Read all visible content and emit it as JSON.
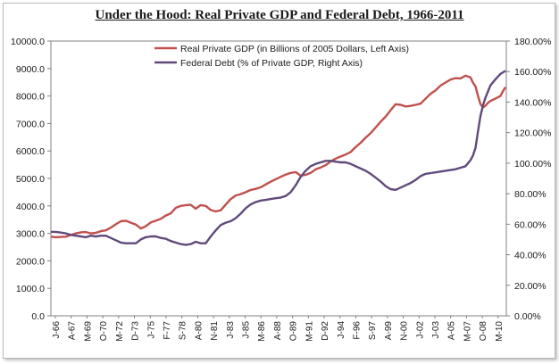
{
  "chart_data": {
    "type": "line",
    "title": "Under the Hood: Real Private GDP and Federal Debt, 1966-2011",
    "x_tick_labels": [
      "J-66",
      "A-67",
      "M-69",
      "O-70",
      "M-72",
      "D-73",
      "J-75",
      "F-77",
      "S-78",
      "A-80",
      "N-81",
      "J-83",
      "J-85",
      "M-86",
      "A-88",
      "O-89",
      "M-91",
      "D-92",
      "J-94",
      "F-96",
      "S-97",
      "A-99",
      "N-00",
      "J-02",
      "J-03",
      "A-05",
      "M-07",
      "O-08",
      "M-10"
    ],
    "y_left": {
      "ylim": [
        0,
        10000
      ],
      "ticks": [
        "0.0",
        "1000.0",
        "2000.0",
        "3000.0",
        "4000.0",
        "5000.0",
        "6000.0",
        "7000.0",
        "8000.0",
        "9000.0",
        "10000.0"
      ]
    },
    "y_right": {
      "ylim": [
        0,
        180
      ],
      "ticks": [
        "0.00%",
        "20.00%",
        "40.00%",
        "60.00%",
        "80.00%",
        "100.00%",
        "120.00%",
        "140.00%",
        "160.00%",
        "180.00%"
      ]
    },
    "legend_position": "top-center",
    "grid": false,
    "series": [
      {
        "name": "Real Private GDP (in Billions of 2005 Dollars, Left Axis)",
        "axis": "left",
        "color": "#c0504d",
        "points": [
          [
            "1966-01-01",
            2880
          ],
          [
            "1966-07-01",
            2860
          ],
          [
            "1967-01-01",
            2870
          ],
          [
            "1967-07-01",
            2880
          ],
          [
            "1968-01-01",
            2940
          ],
          [
            "1968-07-01",
            3000
          ],
          [
            "1969-01-01",
            3040
          ],
          [
            "1969-07-01",
            3050
          ],
          [
            "1970-01-01",
            3000
          ],
          [
            "1970-07-01",
            3020
          ],
          [
            "1971-01-01",
            3080
          ],
          [
            "1971-07-01",
            3110
          ],
          [
            "1972-01-01",
            3210
          ],
          [
            "1972-07-01",
            3330
          ],
          [
            "1973-01-01",
            3440
          ],
          [
            "1973-07-01",
            3460
          ],
          [
            "1974-01-01",
            3390
          ],
          [
            "1974-07-01",
            3320
          ],
          [
            "1975-01-01",
            3180
          ],
          [
            "1975-07-01",
            3260
          ],
          [
            "1976-01-01",
            3400
          ],
          [
            "1976-07-01",
            3460
          ],
          [
            "1977-01-01",
            3530
          ],
          [
            "1977-07-01",
            3650
          ],
          [
            "1978-01-01",
            3730
          ],
          [
            "1978-07-01",
            3930
          ],
          [
            "1979-01-01",
            4000
          ],
          [
            "1979-07-01",
            4030
          ],
          [
            "1980-01-01",
            4040
          ],
          [
            "1980-07-01",
            3900
          ],
          [
            "1981-01-01",
            4030
          ],
          [
            "1981-07-01",
            4000
          ],
          [
            "1982-01-01",
            3850
          ],
          [
            "1982-07-01",
            3800
          ],
          [
            "1983-01-01",
            3840
          ],
          [
            "1983-07-01",
            4050
          ],
          [
            "1984-01-01",
            4250
          ],
          [
            "1984-07-01",
            4380
          ],
          [
            "1985-01-01",
            4430
          ],
          [
            "1985-07-01",
            4500
          ],
          [
            "1986-01-01",
            4580
          ],
          [
            "1986-07-01",
            4620
          ],
          [
            "1987-01-01",
            4680
          ],
          [
            "1987-07-01",
            4780
          ],
          [
            "1988-01-01",
            4880
          ],
          [
            "1988-07-01",
            4970
          ],
          [
            "1989-01-01",
            5060
          ],
          [
            "1989-07-01",
            5140
          ],
          [
            "1990-01-01",
            5200
          ],
          [
            "1990-07-01",
            5230
          ],
          [
            "1991-01-01",
            5100
          ],
          [
            "1991-07-01",
            5130
          ],
          [
            "1992-01-01",
            5200
          ],
          [
            "1992-07-01",
            5330
          ],
          [
            "1993-01-01",
            5400
          ],
          [
            "1993-07-01",
            5480
          ],
          [
            "1994-01-01",
            5620
          ],
          [
            "1994-07-01",
            5720
          ],
          [
            "1995-01-01",
            5800
          ],
          [
            "1995-07-01",
            5870
          ],
          [
            "1996-01-01",
            5960
          ],
          [
            "1996-07-01",
            6140
          ],
          [
            "1997-01-01",
            6300
          ],
          [
            "1997-07-01",
            6480
          ],
          [
            "1998-01-01",
            6650
          ],
          [
            "1998-07-01",
            6850
          ],
          [
            "1999-01-01",
            7060
          ],
          [
            "1999-07-01",
            7250
          ],
          [
            "2000-01-01",
            7480
          ],
          [
            "2000-07-01",
            7700
          ],
          [
            "2001-01-01",
            7680
          ],
          [
            "2001-07-01",
            7620
          ],
          [
            "2002-01-01",
            7640
          ],
          [
            "2002-07-01",
            7680
          ],
          [
            "2003-01-01",
            7720
          ],
          [
            "2003-07-01",
            7900
          ],
          [
            "2004-01-01",
            8080
          ],
          [
            "2004-07-01",
            8200
          ],
          [
            "2005-01-01",
            8380
          ],
          [
            "2005-07-01",
            8490
          ],
          [
            "2006-01-01",
            8600
          ],
          [
            "2006-07-01",
            8650
          ],
          [
            "2007-01-01",
            8640
          ],
          [
            "2007-07-01",
            8740
          ],
          [
            "2008-01-01",
            8680
          ],
          [
            "2008-04-01",
            8480
          ],
          [
            "2008-07-01",
            8350
          ],
          [
            "2008-10-01",
            8000
          ],
          [
            "2009-01-01",
            7700
          ],
          [
            "2009-04-01",
            7580
          ],
          [
            "2009-07-01",
            7650
          ],
          [
            "2009-10-01",
            7750
          ],
          [
            "2010-01-01",
            7820
          ],
          [
            "2010-07-01",
            7910
          ],
          [
            "2011-01-01",
            8000
          ],
          [
            "2011-04-01",
            8180
          ],
          [
            "2011-07-01",
            8320
          ]
        ]
      },
      {
        "name": "Federal Debt (% of Private GDP, Right Axis)",
        "axis": "right",
        "color": "#604a7b",
        "points": [
          [
            "1966-01-01",
            55
          ],
          [
            "1966-07-01",
            55
          ],
          [
            "1967-01-01",
            54.5
          ],
          [
            "1967-07-01",
            54
          ],
          [
            "1968-01-01",
            53
          ],
          [
            "1968-07-01",
            52.5
          ],
          [
            "1969-01-01",
            52
          ],
          [
            "1969-07-01",
            51.5
          ],
          [
            "1970-01-01",
            52.5
          ],
          [
            "1970-07-01",
            52
          ],
          [
            "1971-01-01",
            52.5
          ],
          [
            "1971-07-01",
            52.5
          ],
          [
            "1972-01-01",
            51
          ],
          [
            "1972-07-01",
            49.5
          ],
          [
            "1973-01-01",
            48
          ],
          [
            "1973-07-01",
            47.5
          ],
          [
            "1974-01-01",
            47.5
          ],
          [
            "1974-07-01",
            47.5
          ],
          [
            "1975-01-01",
            50
          ],
          [
            "1975-07-01",
            51.5
          ],
          [
            "1976-01-01",
            52
          ],
          [
            "1976-07-01",
            52
          ],
          [
            "1977-01-01",
            51
          ],
          [
            "1977-07-01",
            50.5
          ],
          [
            "1978-01-01",
            49
          ],
          [
            "1978-07-01",
            48
          ],
          [
            "1979-01-01",
            47
          ],
          [
            "1979-07-01",
            46.5
          ],
          [
            "1980-01-01",
            47
          ],
          [
            "1980-07-01",
            48.5
          ],
          [
            "1981-01-01",
            47.5
          ],
          [
            "1981-07-01",
            47.5
          ],
          [
            "1982-01-01",
            52
          ],
          [
            "1982-07-01",
            56
          ],
          [
            "1983-01-01",
            59.5
          ],
          [
            "1983-07-01",
            61
          ],
          [
            "1984-01-01",
            62
          ],
          [
            "1984-07-01",
            64
          ],
          [
            "1985-01-01",
            67
          ],
          [
            "1985-07-01",
            70.5
          ],
          [
            "1986-01-01",
            73
          ],
          [
            "1986-07-01",
            74.5
          ],
          [
            "1987-01-01",
            75.5
          ],
          [
            "1987-07-01",
            76
          ],
          [
            "1988-01-01",
            76.5
          ],
          [
            "1988-07-01",
            77
          ],
          [
            "1989-01-01",
            77.5
          ],
          [
            "1989-07-01",
            78.5
          ],
          [
            "1990-01-01",
            81
          ],
          [
            "1990-07-01",
            85.5
          ],
          [
            "1991-01-01",
            91
          ],
          [
            "1991-07-01",
            95
          ],
          [
            "1992-01-01",
            98
          ],
          [
            "1992-07-01",
            99.5
          ],
          [
            "1993-01-01",
            100.5
          ],
          [
            "1993-07-01",
            101.5
          ],
          [
            "1994-01-01",
            101.5
          ],
          [
            "1994-07-01",
            101
          ],
          [
            "1995-01-01",
            100.5
          ],
          [
            "1995-07-01",
            100.5
          ],
          [
            "1996-01-01",
            99.5
          ],
          [
            "1996-07-01",
            98
          ],
          [
            "1997-01-01",
            96.5
          ],
          [
            "1997-07-01",
            95
          ],
          [
            "1998-01-01",
            93
          ],
          [
            "1998-07-01",
            90.5
          ],
          [
            "1999-01-01",
            88
          ],
          [
            "1999-07-01",
            85
          ],
          [
            "2000-01-01",
            83
          ],
          [
            "2000-07-01",
            82.5
          ],
          [
            "2001-01-01",
            84
          ],
          [
            "2001-07-01",
            85.5
          ],
          [
            "2002-01-01",
            87
          ],
          [
            "2002-07-01",
            89
          ],
          [
            "2003-01-01",
            91.5
          ],
          [
            "2003-07-01",
            93
          ],
          [
            "2004-01-01",
            93.5
          ],
          [
            "2004-07-01",
            94
          ],
          [
            "2005-01-01",
            94.5
          ],
          [
            "2005-07-01",
            95
          ],
          [
            "2006-01-01",
            95.5
          ],
          [
            "2006-07-01",
            96
          ],
          [
            "2007-01-01",
            97
          ],
          [
            "2007-07-01",
            98
          ],
          [
            "2008-01-01",
            102
          ],
          [
            "2008-04-01",
            105
          ],
          [
            "2008-07-01",
            110
          ],
          [
            "2008-10-01",
            121
          ],
          [
            "2009-01-01",
            131
          ],
          [
            "2009-04-01",
            138
          ],
          [
            "2009-07-01",
            143
          ],
          [
            "2009-10-01",
            147
          ],
          [
            "2010-01-01",
            151
          ],
          [
            "2010-07-01",
            155
          ],
          [
            "2011-01-01",
            158.5
          ],
          [
            "2011-04-01",
            159.5
          ],
          [
            "2011-07-01",
            160.5
          ]
        ]
      }
    ]
  }
}
